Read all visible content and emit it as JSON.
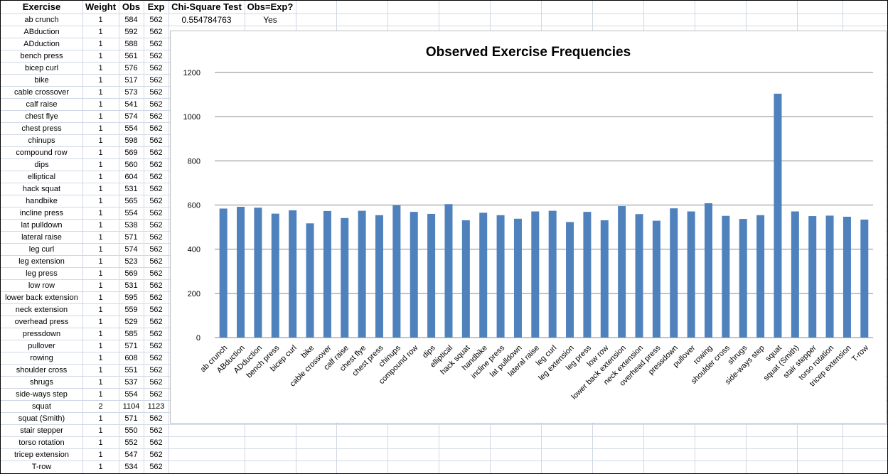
{
  "headers": {
    "exercise": "Exercise",
    "weight": "Weight",
    "obs": "Obs",
    "exp": "Exp",
    "chi_square": "Chi-Square Test",
    "obs_eq_exp": "Obs=Exp?"
  },
  "chi_square_value": "0.554784763",
  "obs_eq_exp_value": "Yes",
  "rows": [
    {
      "exercise": "ab crunch",
      "weight": "1",
      "obs": "584",
      "exp": "562"
    },
    {
      "exercise": "ABduction",
      "weight": "1",
      "obs": "592",
      "exp": "562"
    },
    {
      "exercise": "ADduction",
      "weight": "1",
      "obs": "588",
      "exp": "562"
    },
    {
      "exercise": "bench press",
      "weight": "1",
      "obs": "561",
      "exp": "562"
    },
    {
      "exercise": "bicep curl",
      "weight": "1",
      "obs": "576",
      "exp": "562"
    },
    {
      "exercise": "bike",
      "weight": "1",
      "obs": "517",
      "exp": "562"
    },
    {
      "exercise": "cable crossover",
      "weight": "1",
      "obs": "573",
      "exp": "562"
    },
    {
      "exercise": "calf raise",
      "weight": "1",
      "obs": "541",
      "exp": "562"
    },
    {
      "exercise": "chest flye",
      "weight": "1",
      "obs": "574",
      "exp": "562"
    },
    {
      "exercise": "chest press",
      "weight": "1",
      "obs": "554",
      "exp": "562"
    },
    {
      "exercise": "chinups",
      "weight": "1",
      "obs": "598",
      "exp": "562"
    },
    {
      "exercise": "compound row",
      "weight": "1",
      "obs": "569",
      "exp": "562"
    },
    {
      "exercise": "dips",
      "weight": "1",
      "obs": "560",
      "exp": "562"
    },
    {
      "exercise": "elliptical",
      "weight": "1",
      "obs": "604",
      "exp": "562"
    },
    {
      "exercise": "hack squat",
      "weight": "1",
      "obs": "531",
      "exp": "562"
    },
    {
      "exercise": "handbike",
      "weight": "1",
      "obs": "565",
      "exp": "562"
    },
    {
      "exercise": "incline press",
      "weight": "1",
      "obs": "554",
      "exp": "562"
    },
    {
      "exercise": "lat pulldown",
      "weight": "1",
      "obs": "538",
      "exp": "562"
    },
    {
      "exercise": "lateral raise",
      "weight": "1",
      "obs": "571",
      "exp": "562"
    },
    {
      "exercise": "leg curl",
      "weight": "1",
      "obs": "574",
      "exp": "562"
    },
    {
      "exercise": "leg extension",
      "weight": "1",
      "obs": "523",
      "exp": "562"
    },
    {
      "exercise": "leg press",
      "weight": "1",
      "obs": "569",
      "exp": "562"
    },
    {
      "exercise": "low row",
      "weight": "1",
      "obs": "531",
      "exp": "562"
    },
    {
      "exercise": "lower back extension",
      "weight": "1",
      "obs": "595",
      "exp": "562"
    },
    {
      "exercise": "neck extension",
      "weight": "1",
      "obs": "559",
      "exp": "562"
    },
    {
      "exercise": "overhead press",
      "weight": "1",
      "obs": "529",
      "exp": "562"
    },
    {
      "exercise": "pressdown",
      "weight": "1",
      "obs": "585",
      "exp": "562"
    },
    {
      "exercise": "pullover",
      "weight": "1",
      "obs": "571",
      "exp": "562"
    },
    {
      "exercise": "rowing",
      "weight": "1",
      "obs": "608",
      "exp": "562"
    },
    {
      "exercise": "shoulder cross",
      "weight": "1",
      "obs": "551",
      "exp": "562"
    },
    {
      "exercise": "shrugs",
      "weight": "1",
      "obs": "537",
      "exp": "562"
    },
    {
      "exercise": "side-ways step",
      "weight": "1",
      "obs": "554",
      "exp": "562"
    },
    {
      "exercise": "squat",
      "weight": "2",
      "obs": "1104",
      "exp": "1123"
    },
    {
      "exercise": "squat (Smith)",
      "weight": "1",
      "obs": "571",
      "exp": "562"
    },
    {
      "exercise": "stair stepper",
      "weight": "1",
      "obs": "550",
      "exp": "562"
    },
    {
      "exercise": "torso rotation",
      "weight": "1",
      "obs": "552",
      "exp": "562"
    },
    {
      "exercise": "tricep extension",
      "weight": "1",
      "obs": "547",
      "exp": "562"
    },
    {
      "exercise": "T-row",
      "weight": "1",
      "obs": "534",
      "exp": "562"
    }
  ],
  "colors": {
    "bar": "#4f81bd",
    "gridline": "#868686",
    "cell_border": "#d0d7e5"
  },
  "chart_data": {
    "type": "bar",
    "title": "Observed Exercise Frequencies",
    "xlabel": "",
    "ylabel": "",
    "ylim": [
      0,
      1200
    ],
    "yticks": [
      0,
      200,
      400,
      600,
      800,
      1000,
      1200
    ],
    "grid": true,
    "legend": "none",
    "categories": [
      "ab crunch",
      "ABduction",
      "ADduction",
      "bench press",
      "bicep curl",
      "bike",
      "cable crossover",
      "calf raise",
      "chest flye",
      "chest press",
      "chinups",
      "compound row",
      "dips",
      "elliptical",
      "hack squat",
      "handbike",
      "incline press",
      "lat pulldown",
      "lateral raise",
      "leg curl",
      "leg extension",
      "leg press",
      "low row",
      "lower back extension",
      "neck extension",
      "overhead press",
      "pressdown",
      "pullover",
      "rowing",
      "shoulder cross",
      "shrugs",
      "side-ways step",
      "squat",
      "squat (Smith)",
      "stair stepper",
      "torso rotation",
      "tricep extension",
      "T-row"
    ],
    "values": [
      584,
      592,
      588,
      561,
      576,
      517,
      573,
      541,
      574,
      554,
      598,
      569,
      560,
      604,
      531,
      565,
      554,
      538,
      571,
      574,
      523,
      569,
      531,
      595,
      559,
      529,
      585,
      571,
      608,
      551,
      537,
      554,
      1104,
      571,
      550,
      552,
      547,
      534
    ]
  }
}
